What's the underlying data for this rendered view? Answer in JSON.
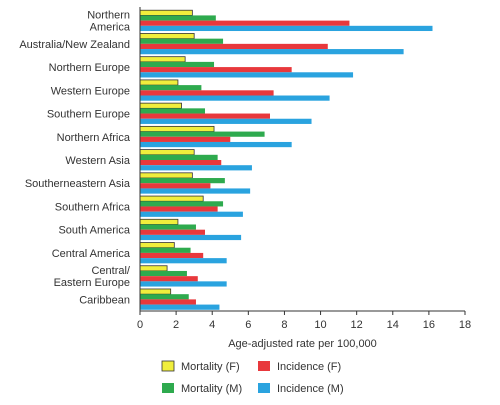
{
  "chart_data": {
    "type": "bar",
    "orientation": "horizontal",
    "categories": [
      [
        "Northern",
        "America"
      ],
      [
        "Australia/New Zealand"
      ],
      [
        "Northern Europe"
      ],
      [
        "Western Europe"
      ],
      [
        "Southern Europe"
      ],
      [
        "Northern Africa"
      ],
      [
        "Western Asia"
      ],
      [
        "Southerneastern Asia"
      ],
      [
        "Southern Africa"
      ],
      [
        "South America"
      ],
      [
        "Central America"
      ],
      [
        "Central/",
        "Eastern Europe"
      ],
      [
        "Caribbean"
      ]
    ],
    "series": [
      {
        "name": "Mortality (F)",
        "color": "#f0ee3c",
        "values": [
          2.9,
          3.0,
          2.5,
          2.1,
          2.3,
          4.1,
          3.0,
          2.9,
          3.5,
          2.1,
          1.9,
          1.5,
          1.7
        ]
      },
      {
        "name": "Mortality (M)",
        "color": "#2eaa4e",
        "values": [
          4.2,
          4.6,
          4.1,
          3.4,
          3.6,
          6.9,
          4.3,
          4.7,
          4.6,
          3.1,
          2.8,
          2.6,
          2.7
        ]
      },
      {
        "name": "Incidence (F)",
        "color": "#e8383c",
        "values": [
          11.6,
          10.4,
          8.4,
          7.4,
          7.2,
          5.0,
          4.5,
          3.9,
          4.3,
          3.6,
          3.5,
          3.2,
          3.1
        ]
      },
      {
        "name": "Incidence (M)",
        "color": "#2aa3df",
        "values": [
          16.2,
          14.6,
          11.8,
          10.5,
          9.5,
          8.4,
          6.2,
          6.1,
          5.7,
          5.6,
          4.8,
          4.8,
          4.4
        ]
      }
    ],
    "xlabel": "Age-adjusted rate per 100,000",
    "xlim": [
      0,
      18
    ],
    "xticks": [
      0,
      2,
      4,
      6,
      8,
      10,
      12,
      14,
      16,
      18
    ],
    "grid": false,
    "legend_position": "bottom",
    "legend_order": [
      "Mortality (F)",
      "Incidence (F)",
      "Mortality (M)",
      "Incidence (M)"
    ]
  }
}
